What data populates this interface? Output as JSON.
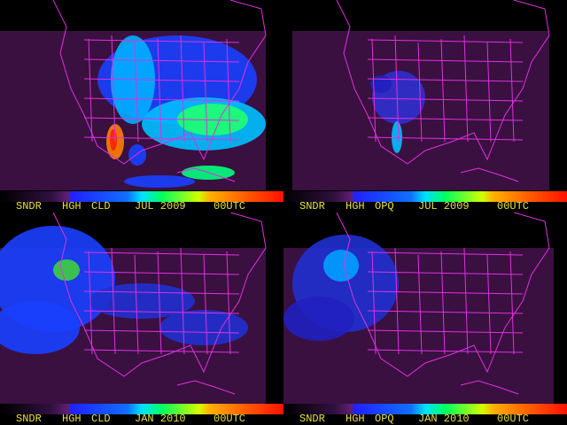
{
  "panels": [
    {
      "label": {
        "product": "SNDR",
        "level": "HGH",
        "field": "CLD",
        "date": "JUL 2009",
        "time": "00UTC"
      }
    },
    {
      "label": {
        "product": "SNDR",
        "level": "HGH",
        "field": "OPQ",
        "date": "JUL 2009",
        "time": "00UTC"
      }
    },
    {
      "label": {
        "product": "SNDR",
        "level": "HGH",
        "field": "CLD",
        "date": "JAN 2010",
        "time": "00UTC"
      }
    },
    {
      "label": {
        "product": "SNDR",
        "level": "HGH",
        "field": "OPQ",
        "date": "JAN 2010",
        "time": "00UTC"
      }
    }
  ]
}
